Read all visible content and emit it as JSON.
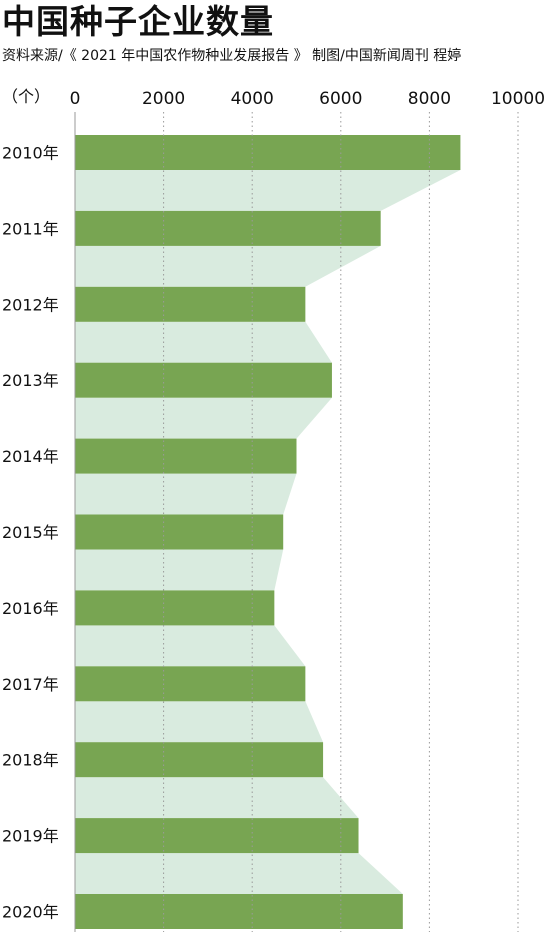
{
  "title": "中国种子企业数量",
  "source": "资料来源/《 2021 年中国农作物种业发展报告 》 制图/中国新闻周刊 程婷",
  "unit_label": "（个）",
  "colors": {
    "bar": "#78a552",
    "band": "#d9ebdf",
    "grid": "#9a9a9a",
    "text": "#111111"
  },
  "chart_data": {
    "type": "bar",
    "orientation": "horizontal",
    "title": "中国种子企业数量",
    "xlabel": "",
    "ylabel": "（个）",
    "xlim": [
      0,
      10000
    ],
    "xticks": [
      0,
      2000,
      4000,
      6000,
      8000,
      10000
    ],
    "grid": true,
    "categories": [
      "2010年",
      "2011年",
      "2012年",
      "2013年",
      "2014年",
      "2015年",
      "2016年",
      "2017年",
      "2018年",
      "2019年",
      "2020年"
    ],
    "values": [
      8700,
      6900,
      5200,
      5800,
      5000,
      4700,
      4500,
      5200,
      5600,
      6400,
      7400
    ]
  }
}
